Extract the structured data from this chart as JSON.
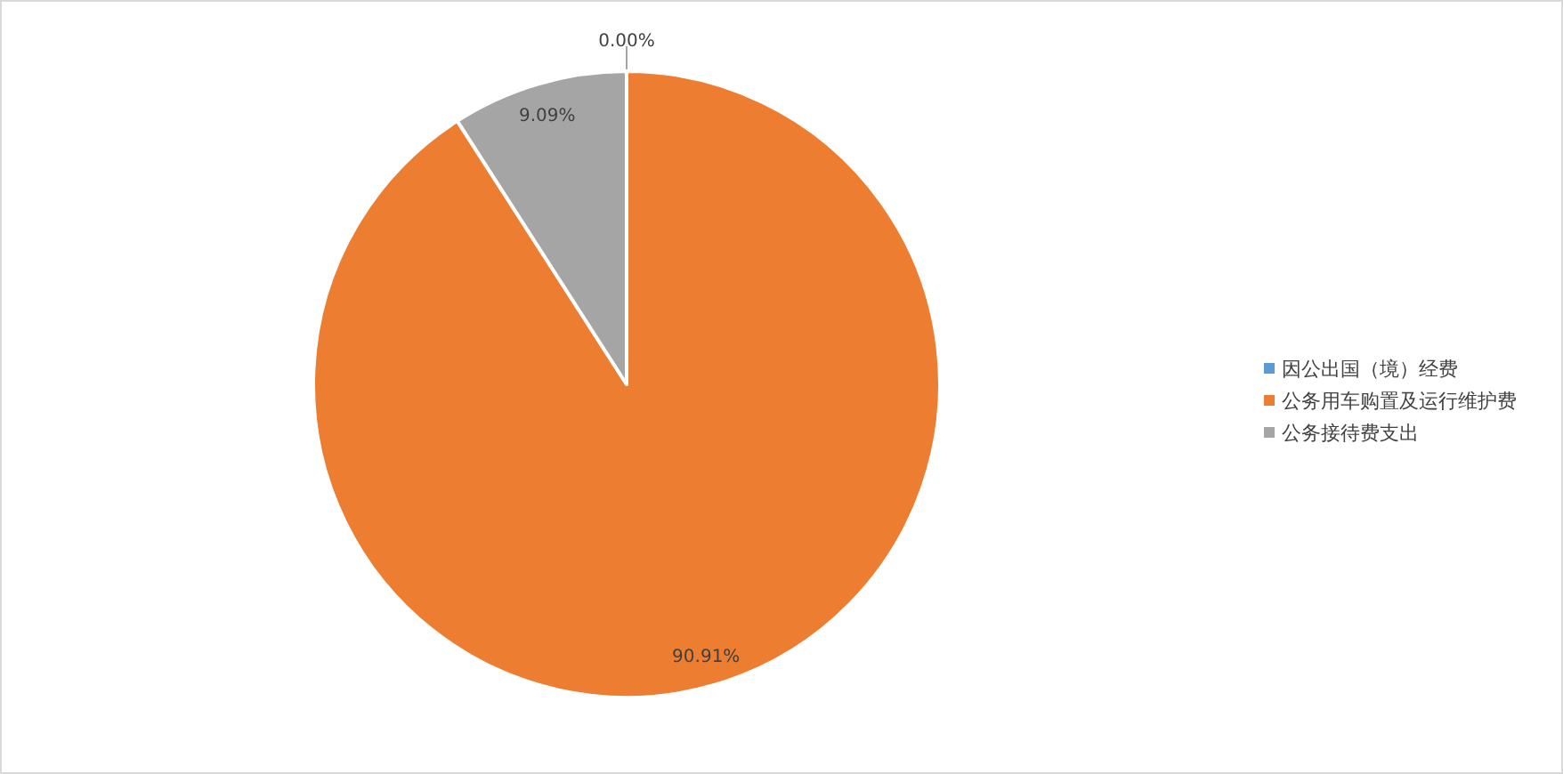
{
  "chart_data": {
    "type": "pie",
    "categories": [
      "因公出国（境）经费",
      "公务用车购置及运行维护费",
      "公务接待费支出"
    ],
    "values": [
      0,
      90.91,
      9.09
    ],
    "colors": [
      "#5b9bd5",
      "#ed7d31",
      "#a5a5a5"
    ],
    "value_labels": [
      "0.00%",
      "90.91%",
      "9.09%"
    ],
    "legend": "right"
  }
}
